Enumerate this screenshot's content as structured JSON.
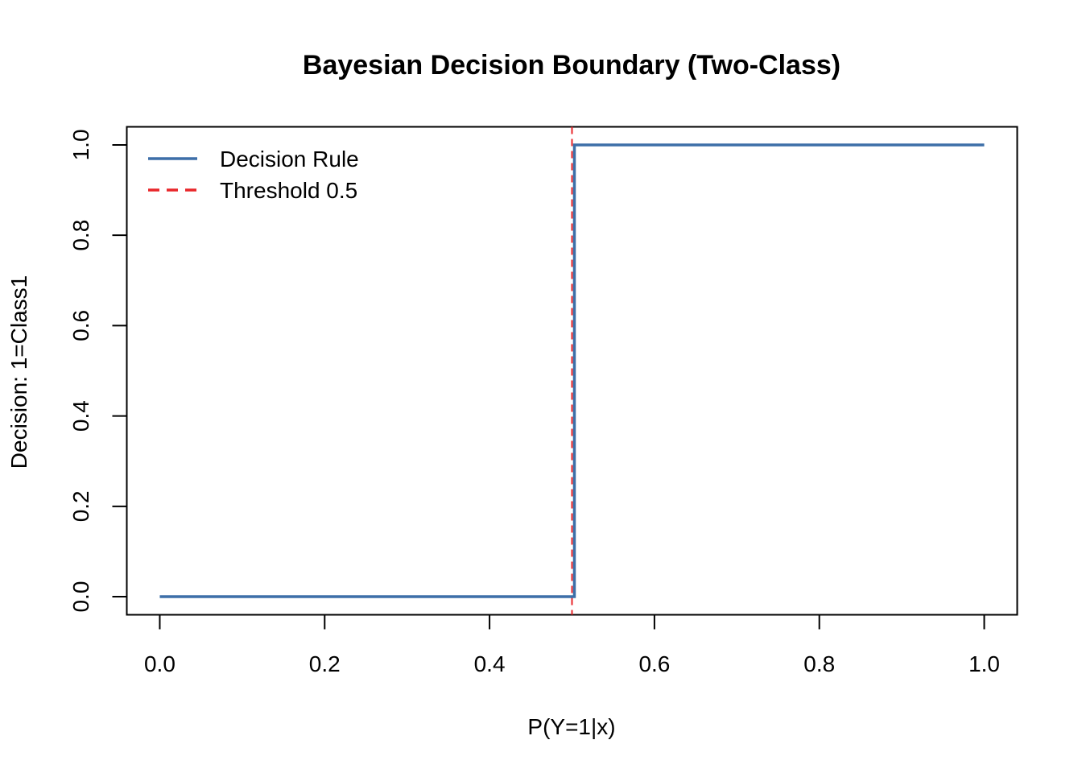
{
  "chart_data": {
    "type": "line",
    "title": "Bayesian Decision Boundary (Two-Class)",
    "xlabel": "P(Y=1|x)",
    "ylabel": "Decision: 1=Class1",
    "xlim": [
      -0.04,
      1.04
    ],
    "ylim": [
      -0.04,
      1.04
    ],
    "x_ticks": [
      0.0,
      0.2,
      0.4,
      0.6,
      0.8,
      1.0
    ],
    "x_tick_labels": [
      "0.0",
      "0.2",
      "0.4",
      "0.6",
      "0.8",
      "1.0"
    ],
    "y_ticks": [
      0.0,
      0.2,
      0.4,
      0.6,
      0.8,
      1.0
    ],
    "y_tick_labels": [
      "0.0",
      "0.2",
      "0.4",
      "0.6",
      "0.8",
      "1.0"
    ],
    "grid": false,
    "legend_position": "top-left",
    "series": [
      {
        "name": "Decision Rule",
        "style": "solid",
        "color": "#3d6fa8",
        "x": [
          0.0,
          0.5,
          0.5,
          1.0
        ],
        "y": [
          0,
          0,
          1,
          1
        ]
      },
      {
        "name": "Threshold 0.5",
        "style": "dashed",
        "color": "#e8262a",
        "vline": 0.5
      }
    ]
  }
}
